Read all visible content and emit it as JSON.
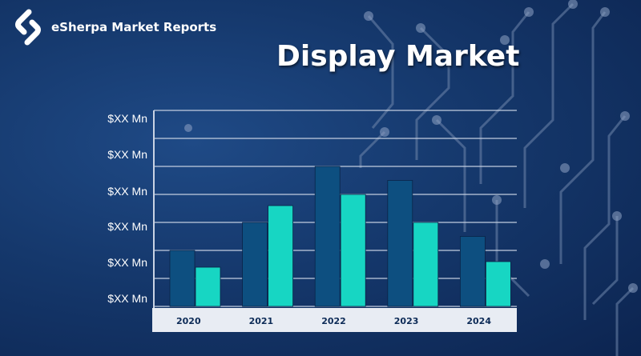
{
  "brand": {
    "name": "eSherpa Market Reports",
    "logo_icon": "esherpa-logo-icon"
  },
  "colors": {
    "background": "#15386c",
    "series_dark": "#0d4f80",
    "series_light": "#17d6c3",
    "gridline": "#c9d3e4",
    "axis_panel": "#e8ecf3"
  },
  "chart_data": {
    "type": "bar",
    "title": "Display Market",
    "categories": [
      "2020",
      "2021",
      "2022",
      "2023",
      "2024"
    ],
    "ytick_labels": [
      "$XX Mn",
      "$XX Mn",
      "$XX Mn",
      "$XX Mn",
      "$XX Mn",
      "$XX Mn"
    ],
    "ylim": [
      0,
      7
    ],
    "grid": true,
    "legend": "none",
    "series": [
      {
        "values": [
          2.0,
          3.0,
          5.0,
          4.5,
          2.5
        ]
      },
      {
        "values": [
          1.4,
          3.6,
          4.0,
          3.0,
          1.6
        ]
      }
    ]
  }
}
